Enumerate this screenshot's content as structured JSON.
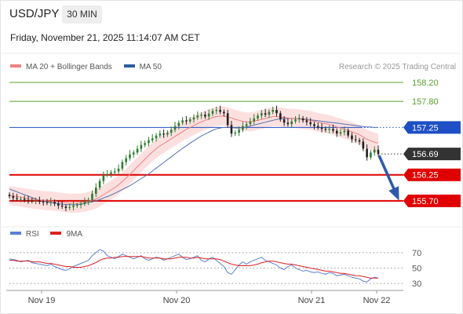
{
  "header": {
    "symbol": "USD/JPY",
    "timeframe": "30 MIN",
    "timestamp": "Friday, November 21, 2025 11:14:07 AM CET"
  },
  "legend": {
    "items": [
      {
        "label": "MA 20 + Bollinger Bands",
        "color": "#f08080"
      },
      {
        "label": "MA 50",
        "color": "#2f5aa0"
      }
    ],
    "credit": "Research © 2025 Trading Central"
  },
  "rsi_legend": {
    "items": [
      {
        "label": "RSI",
        "color": "#5b7fd6"
      },
      {
        "label": "9MA",
        "color": "#dd2222"
      }
    ]
  },
  "chart_data": [
    {
      "type": "candlestick",
      "title": "USD/JPY",
      "timeframe": "30 MIN",
      "x_ticks": [
        "Nov 19",
        "Nov 20",
        "Nov 21",
        "Nov 22"
      ],
      "ylim": [
        155.3,
        158.35
      ],
      "levels": [
        {
          "value": 158.2,
          "label": "158.20",
          "color": "#5aa02c",
          "style": "thin"
        },
        {
          "value": 157.8,
          "label": "157.80",
          "color": "#5aa02c",
          "style": "thin"
        },
        {
          "value": 157.25,
          "label": "157.25",
          "color": "#1f4fc4",
          "style": "pivot"
        },
        {
          "value": 156.69,
          "label": "156.69",
          "color": "#333333",
          "style": "last"
        },
        {
          "value": 156.25,
          "label": "156.25",
          "color": "#e00000",
          "style": "thick"
        },
        {
          "value": 155.7,
          "label": "155.70",
          "color": "#e00000",
          "style": "thick"
        }
      ],
      "close_series": [
        155.8,
        155.76,
        155.74,
        155.74,
        155.72,
        155.71,
        155.7,
        155.7,
        155.68,
        155.67,
        155.66,
        155.68,
        155.64,
        155.6,
        155.58,
        155.55,
        155.57,
        155.6,
        155.61,
        155.64,
        155.68,
        155.72,
        155.85,
        155.98,
        156.12,
        156.25,
        156.26,
        156.3,
        156.32,
        156.38,
        156.52,
        156.6,
        156.68,
        156.72,
        156.8,
        156.88,
        156.92,
        156.98,
        157.02,
        157.08,
        157.12,
        157.1,
        157.14,
        157.2,
        157.28,
        157.35,
        157.4,
        157.38,
        157.42,
        157.46,
        157.5,
        157.52,
        157.48,
        157.54,
        157.6,
        157.62,
        157.58,
        157.55,
        157.3,
        157.12,
        157.14,
        157.2,
        157.28,
        157.32,
        157.38,
        157.44,
        157.5,
        157.55,
        157.52,
        157.58,
        157.62,
        157.55,
        157.42,
        157.35,
        157.32,
        157.38,
        157.42,
        157.44,
        157.4,
        157.36,
        157.32,
        157.28,
        157.25,
        157.22,
        157.2,
        157.22,
        157.18,
        157.12,
        157.15,
        157.18,
        157.08,
        157.0,
        156.98,
        156.95,
        156.8,
        156.62,
        156.72,
        156.78,
        156.69
      ],
      "ma20_series": [
        155.82,
        155.8,
        155.79,
        155.78,
        155.76,
        155.75,
        155.74,
        155.73,
        155.72,
        155.71,
        155.7,
        155.7,
        155.69,
        155.68,
        155.67,
        155.66,
        155.65,
        155.65,
        155.65,
        155.66,
        155.67,
        155.69,
        155.71,
        155.74,
        155.78,
        155.83,
        155.88,
        155.93,
        155.98,
        156.04,
        156.11,
        156.18,
        156.26,
        156.34,
        156.42,
        156.5,
        156.58,
        156.66,
        156.73,
        156.8,
        156.86,
        156.91,
        156.96,
        157.01,
        157.06,
        157.11,
        157.16,
        157.21,
        157.25,
        157.29,
        157.33,
        157.37,
        157.4,
        157.43,
        157.46,
        157.48,
        157.49,
        157.49,
        157.47,
        157.45,
        157.42,
        157.4,
        157.38,
        157.37,
        157.37,
        157.38,
        157.4,
        157.42,
        157.44,
        157.46,
        157.48,
        157.48,
        157.47,
        157.46,
        157.45,
        157.44,
        157.44,
        157.43,
        157.42,
        157.41,
        157.4,
        157.38,
        157.36,
        157.34,
        157.33,
        157.31,
        157.29,
        157.26,
        157.24,
        157.21,
        157.19,
        157.16,
        157.13,
        157.1,
        157.05,
        157.0,
        156.97,
        156.94,
        156.92
      ],
      "bollinger_width": 0.2,
      "ma50_series": [
        155.95,
        155.92,
        155.89,
        155.86,
        155.83,
        155.8,
        155.77,
        155.74,
        155.72,
        155.7,
        155.68,
        155.66,
        155.65,
        155.64,
        155.63,
        155.62,
        155.62,
        155.62,
        155.62,
        155.63,
        155.64,
        155.66,
        155.68,
        155.7,
        155.73,
        155.76,
        155.79,
        155.82,
        155.86,
        155.9,
        155.94,
        155.98,
        156.02,
        156.07,
        156.12,
        156.17,
        156.22,
        156.27,
        156.33,
        156.39,
        156.45,
        156.51,
        156.57,
        156.63,
        156.69,
        156.75,
        156.81,
        156.86,
        156.92,
        156.97,
        157.02,
        157.07,
        157.11,
        157.15,
        157.19,
        157.22,
        157.24,
        157.25,
        157.25,
        157.25,
        157.24,
        157.24,
        157.25,
        157.26,
        157.28,
        157.3,
        157.32,
        157.34,
        157.36,
        157.38,
        157.4,
        157.42,
        157.43,
        157.44,
        157.44,
        157.44,
        157.44,
        157.44,
        157.43,
        157.42,
        157.41,
        157.4,
        157.39,
        157.38,
        157.37,
        157.36,
        157.35,
        157.34,
        157.33,
        157.32,
        157.31,
        157.3,
        157.29,
        157.28,
        157.27,
        157.26,
        157.26,
        157.25,
        157.25
      ],
      "projection_arrow": {
        "from": 156.69,
        "to": 155.7
      }
    },
    {
      "type": "line",
      "title": "RSI",
      "series_names": [
        "RSI",
        "9MA"
      ],
      "yticks": [
        30,
        50,
        70
      ],
      "ylim": [
        25,
        80
      ],
      "rsi_series": [
        62,
        61,
        60,
        58,
        59,
        60,
        57,
        56,
        55,
        54,
        53,
        55,
        52,
        50,
        48,
        47,
        49,
        52,
        54,
        56,
        58,
        60,
        66,
        70,
        74,
        72,
        66,
        64,
        62,
        65,
        68,
        66,
        64,
        62,
        64,
        66,
        62,
        60,
        62,
        64,
        63,
        60,
        62,
        64,
        66,
        68,
        64,
        61,
        62,
        64,
        66,
        60,
        58,
        62,
        64,
        60,
        56,
        52,
        44,
        42,
        48,
        54,
        58,
        55,
        58,
        60,
        62,
        64,
        60,
        58,
        56,
        54,
        50,
        48,
        52,
        54,
        50,
        48,
        46,
        47,
        45,
        44,
        45,
        43,
        42,
        44,
        43,
        40,
        41,
        42,
        40,
        38,
        37,
        36,
        33,
        32,
        36,
        38,
        37
      ],
      "ma9_series": [
        60,
        60,
        59,
        59,
        59,
        59,
        58,
        58,
        58,
        57,
        56,
        56,
        55,
        54,
        53,
        52,
        52,
        51,
        51,
        51,
        52,
        53,
        55,
        57,
        60,
        62,
        63,
        63,
        64,
        64,
        65,
        65,
        65,
        65,
        65,
        65,
        64,
        63,
        63,
        63,
        63,
        62,
        62,
        62,
        63,
        64,
        64,
        64,
        63,
        63,
        64,
        63,
        62,
        62,
        62,
        62,
        61,
        59,
        57,
        55,
        54,
        53,
        53,
        53,
        53,
        54,
        55,
        57,
        58,
        59,
        59,
        58,
        57,
        56,
        55,
        55,
        54,
        53,
        52,
        51,
        50,
        49,
        48,
        47,
        46,
        46,
        45,
        44,
        43,
        43,
        42,
        41,
        40,
        40,
        39,
        38,
        37,
        37,
        37
      ]
    }
  ],
  "axis": {
    "y_main_ticks": [
      "158.20",
      "157.80",
      "157.25",
      "156.69",
      "156.25",
      "155.70"
    ],
    "y_rsi_ticks": [
      "70",
      "50",
      "30"
    ],
    "x_ticks": [
      "Nov 19",
      "Nov 20",
      "Nov 21",
      "Nov 22"
    ]
  }
}
